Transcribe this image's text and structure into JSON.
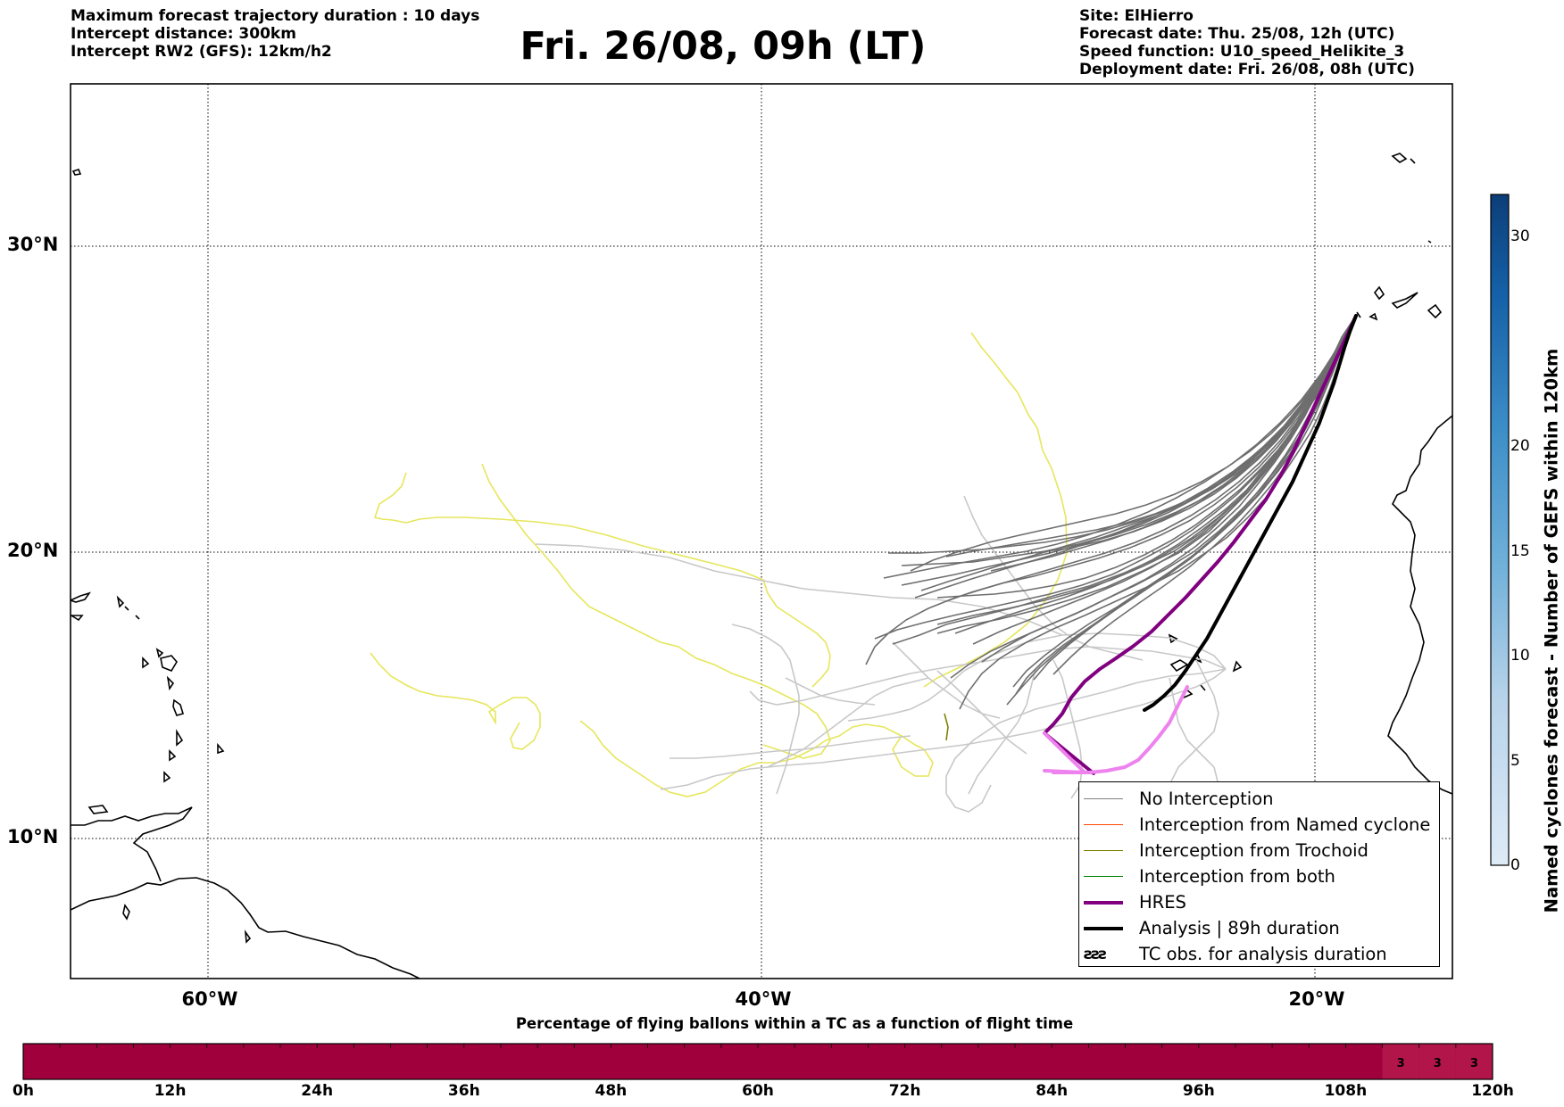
{
  "header": {
    "left_lines": [
      "Maximum forecast trajectory duration : 10 days",
      "Intercept distance: 300km",
      "Intercept RW2 (GFS):  12km/h2"
    ],
    "title": "Fri. 26/08, 09h (LT)",
    "right_lines": [
      "Site: ElHierro",
      "Forecast date: Thu. 25/08, 12h (UTC)",
      "Speed function: U10_speed_Helikite_3",
      "Deployment date: Fri. 26/08, 08h (UTC)"
    ]
  },
  "map": {
    "lat_labels": [
      "30°N",
      "20°N",
      "10°N"
    ],
    "lon_labels": [
      "60°W",
      "40°W",
      "20°W"
    ],
    "lon_range_deg": [
      -65,
      -15
    ],
    "lat_range_deg": [
      5.5,
      34.8
    ],
    "grid_dotted": true
  },
  "legend": {
    "items": [
      {
        "label": "No Interception",
        "color": "#808080",
        "style": "line"
      },
      {
        "label": "Interception from Named cyclone",
        "color": "#ff4500",
        "style": "line"
      },
      {
        "label": "Interception from Trochoid",
        "color": "#808000",
        "style": "line"
      },
      {
        "label": "Interception from both",
        "color": "#008000",
        "style": "line"
      },
      {
        "label": "HRES",
        "color": "#800080",
        "style": "thick"
      },
      {
        "label": "Analysis | 89h duration",
        "color": "#000000",
        "style": "thick"
      },
      {
        "label": "TC obs. for analysis duration",
        "glyph": "ƨƨƨ",
        "style": "glyph"
      }
    ]
  },
  "colors": {
    "no_interception": "#808080",
    "ensemble_light": "#c8c8c8",
    "cyclone_path": "#e6e65c",
    "hres": "#800080",
    "hres_tail": "#ee82ee",
    "analysis": "#000000",
    "timeline_fill": "#a0003c",
    "timeline_fill_late": "#b2154a"
  },
  "timeline": {
    "title": "Percentage of flying ballons within a TC as a function of flight time",
    "tick_labels": [
      "0h",
      "12h",
      "24h",
      "36h",
      "48h",
      "60h",
      "72h",
      "84h",
      "96h",
      "108h",
      "120h"
    ],
    "max_hours": 120,
    "cell_hours": 3,
    "cell_values": [
      {
        "start_h": 111,
        "value": "3"
      },
      {
        "start_h": 114,
        "value": "3"
      },
      {
        "start_h": 117,
        "value": "3"
      }
    ]
  },
  "colorbar": {
    "title": "Named cyclones forecast - Number of GEFS within 120km",
    "ticks": [
      "0",
      "5",
      "10",
      "15",
      "20",
      "30"
    ],
    "range": [
      0,
      32
    ]
  }
}
